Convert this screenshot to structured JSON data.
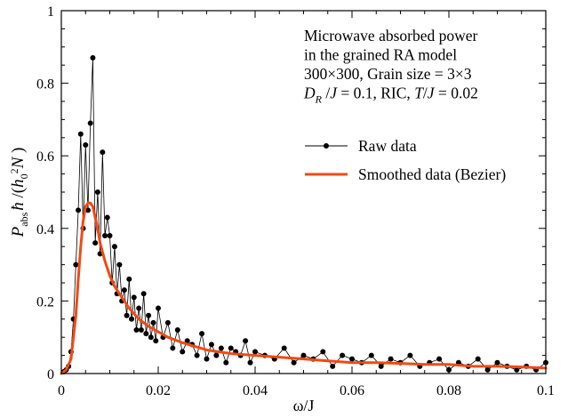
{
  "chart_data": {
    "type": "line",
    "title": "",
    "annotation": {
      "lines": [
        "Microwave absorbed power",
        "in the grained RA model",
        "300×300, Grain size = 3×3",
        "D_R /J = 0.1, RIC, T/J = 0.02"
      ]
    },
    "xlabel": "ω/J",
    "ylabel": "P_abs ħ /(h_0^2 N )",
    "xlim": [
      0,
      0.1
    ],
    "ylim": [
      0,
      1
    ],
    "xticks": [
      0,
      0.02,
      0.04,
      0.06,
      0.08,
      0.1
    ],
    "xtick_labels": [
      "0",
      "0.02",
      "0.04",
      "0.06",
      "0.08",
      "0.1"
    ],
    "yticks": [
      0,
      0.2,
      0.4,
      0.6,
      0.8,
      1
    ],
    "ytick_labels": [
      "0",
      "0.2",
      "0.4",
      "0.6",
      "0.8",
      "1"
    ],
    "legend_position": "upper-right",
    "grid": false,
    "series": [
      {
        "name": "Raw data",
        "color": "#000000",
        "style": "line-with-dots",
        "x": [
          0.0005,
          0.001,
          0.0015,
          0.002,
          0.0025,
          0.003,
          0.0035,
          0.004,
          0.0045,
          0.005,
          0.0055,
          0.006,
          0.0065,
          0.007,
          0.0075,
          0.008,
          0.0085,
          0.009,
          0.0095,
          0.01,
          0.0105,
          0.011,
          0.0115,
          0.012,
          0.0125,
          0.013,
          0.0135,
          0.014,
          0.0145,
          0.015,
          0.0155,
          0.016,
          0.0165,
          0.017,
          0.0175,
          0.018,
          0.0185,
          0.019,
          0.0195,
          0.02,
          0.021,
          0.022,
          0.023,
          0.024,
          0.025,
          0.026,
          0.027,
          0.028,
          0.029,
          0.03,
          0.031,
          0.032,
          0.033,
          0.034,
          0.035,
          0.036,
          0.037,
          0.038,
          0.039,
          0.04,
          0.042,
          0.044,
          0.046,
          0.048,
          0.05,
          0.052,
          0.054,
          0.056,
          0.058,
          0.06,
          0.062,
          0.064,
          0.066,
          0.068,
          0.07,
          0.072,
          0.074,
          0.076,
          0.078,
          0.08,
          0.082,
          0.084,
          0.086,
          0.088,
          0.09,
          0.092,
          0.094,
          0.096,
          0.098,
          0.1
        ],
        "y": [
          0.005,
          0.01,
          0.02,
          0.06,
          0.15,
          0.3,
          0.45,
          0.66,
          0.4,
          0.63,
          0.45,
          0.69,
          0.87,
          0.36,
          0.5,
          0.33,
          0.61,
          0.38,
          0.43,
          0.38,
          0.25,
          0.35,
          0.22,
          0.3,
          0.2,
          0.23,
          0.16,
          0.26,
          0.15,
          0.21,
          0.12,
          0.18,
          0.12,
          0.22,
          0.11,
          0.16,
          0.1,
          0.14,
          0.09,
          0.18,
          0.1,
          0.14,
          0.07,
          0.12,
          0.06,
          0.09,
          0.08,
          0.05,
          0.11,
          0.04,
          0.08,
          0.05,
          0.07,
          0.03,
          0.07,
          0.06,
          0.05,
          0.09,
          0.03,
          0.06,
          0.05,
          0.04,
          0.07,
          0.03,
          0.05,
          0.04,
          0.06,
          0.02,
          0.05,
          0.04,
          0.03,
          0.05,
          0.02,
          0.04,
          0.03,
          0.05,
          0.02,
          0.03,
          0.04,
          0.01,
          0.03,
          0.02,
          0.04,
          0.01,
          0.03,
          0.02,
          0.01,
          0.02,
          0.01,
          0.03
        ]
      },
      {
        "name": "Smoothed data (Bezier)",
        "color": "#f04a14",
        "style": "line",
        "x": [
          0,
          0.001,
          0.002,
          0.003,
          0.0035,
          0.004,
          0.0045,
          0.005,
          0.0055,
          0.006,
          0.0065,
          0.007,
          0.0075,
          0.008,
          0.009,
          0.01,
          0.011,
          0.012,
          0.013,
          0.014,
          0.015,
          0.016,
          0.018,
          0.02,
          0.022,
          0.025,
          0.03,
          0.035,
          0.04,
          0.045,
          0.05,
          0.055,
          0.06,
          0.065,
          0.07,
          0.075,
          0.08,
          0.085,
          0.09,
          0.095,
          0.1
        ],
        "y": [
          0,
          0.01,
          0.04,
          0.16,
          0.26,
          0.35,
          0.42,
          0.46,
          0.47,
          0.47,
          0.46,
          0.43,
          0.4,
          0.36,
          0.31,
          0.27,
          0.24,
          0.22,
          0.2,
          0.18,
          0.165,
          0.15,
          0.13,
          0.115,
          0.1,
          0.085,
          0.065,
          0.055,
          0.05,
          0.045,
          0.04,
          0.035,
          0.03,
          0.03,
          0.028,
          0.025,
          0.025,
          0.02,
          0.02,
          0.018,
          0.015
        ]
      }
    ]
  }
}
